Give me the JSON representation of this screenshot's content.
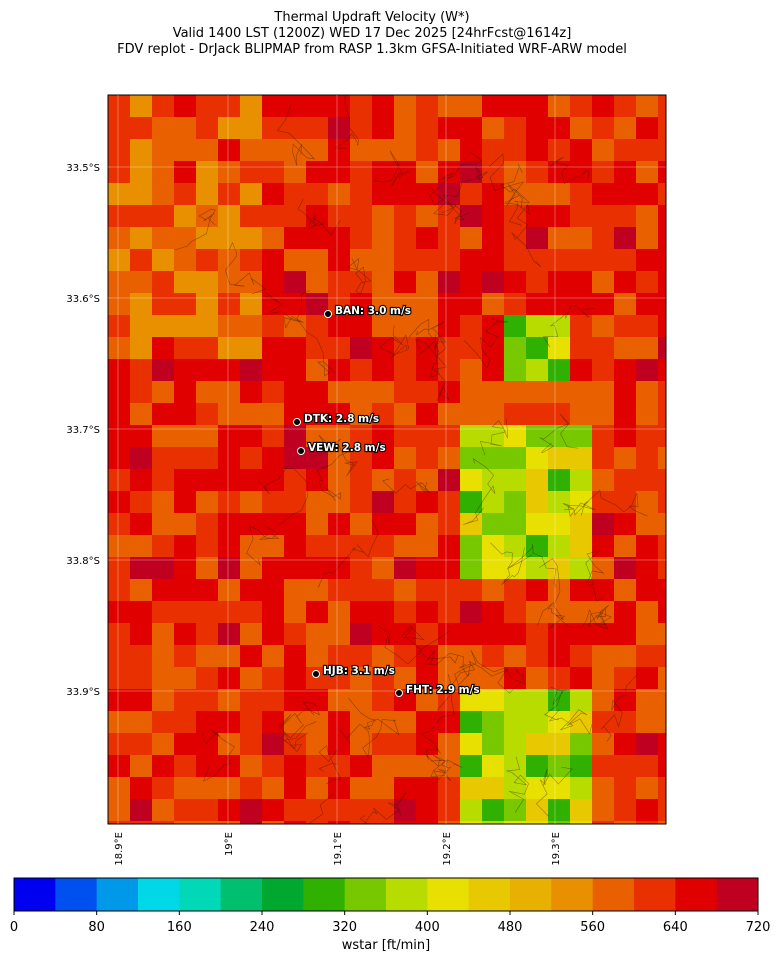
{
  "title_lines": [
    "Thermal Updraft Velocity (W*)",
    "Valid 1400 LST (1200Z) WED 17 Dec 2025 [24hrFcst@1614z]",
    "FDV replot - DrJack BLIPMAP from RASP 1.3km GFSA-Initiated WRF-ARW model"
  ],
  "map": {
    "lat_labels": [
      "33.5°S",
      "33.6°S",
      "33.7°S",
      "33.8°S",
      "33.9°S"
    ],
    "lon_labels": [
      "18.9°E",
      "19°E",
      "19.1°E",
      "19.2°E",
      "19.3°E"
    ],
    "stations": [
      "BAN: 3.0 m/s",
      "DTK: 2.8 m/s",
      "VEW: 2.8 m/s",
      "HJB: 3.1 m/s",
      "FHT: 2.9 m/s"
    ]
  },
  "colorbar": {
    "label": "wstar [ft/min]",
    "lim": [
      0,
      720
    ],
    "ticks": [
      0,
      80,
      160,
      240,
      320,
      400,
      480,
      560,
      640,
      720
    ],
    "colors": [
      "#0000f0",
      "#0050f0",
      "#0098e8",
      "#00d8e8",
      "#00d8b8",
      "#00c070",
      "#00a830",
      "#30b000",
      "#78c800",
      "#b8dc00",
      "#e8e000",
      "#e8c800",
      "#e8b000",
      "#e89000",
      "#e86000",
      "#e83000",
      "#e00000",
      "#c00020"
    ]
  }
}
